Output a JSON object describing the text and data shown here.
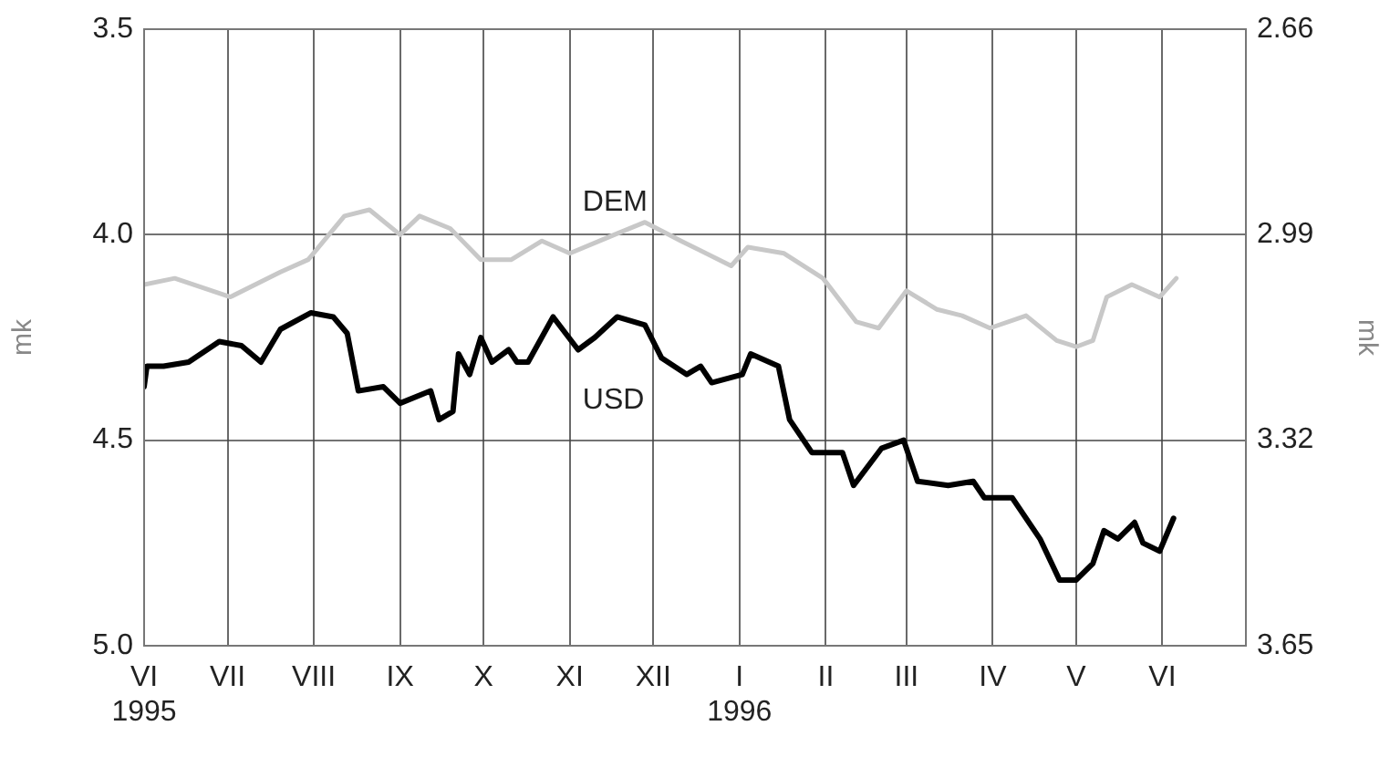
{
  "chart_data": {
    "type": "line",
    "ylabel": "mk",
    "y2label": "mk",
    "xlim": [
      "1995-06-01",
      "1996-07-01"
    ],
    "xticks": [
      {
        "value": "1995-06-01",
        "label": "VI\n1995"
      },
      {
        "value": "1995-07-01",
        "label": "VII"
      },
      {
        "value": "1995-08-01",
        "label": "VIII"
      },
      {
        "value": "1995-09-01",
        "label": "IX"
      },
      {
        "value": "1995-10-01",
        "label": "X"
      },
      {
        "value": "1995-11-01",
        "label": "XI"
      },
      {
        "value": "1995-12-01",
        "label": "XII"
      },
      {
        "value": "1996-01-01",
        "label": "I\n1996"
      },
      {
        "value": "1996-02-01",
        "label": "II"
      },
      {
        "value": "1996-03-01",
        "label": "III"
      },
      {
        "value": "1996-04-01",
        "label": "IV"
      },
      {
        "value": "1996-05-01",
        "label": "V"
      },
      {
        "value": "1996-06-01",
        "label": "VI"
      }
    ],
    "ylim": [
      5.0,
      3.5
    ],
    "yticks": [
      {
        "value": 3.5,
        "label": "3.5"
      },
      {
        "value": 4,
        "label": "4.0"
      },
      {
        "value": 4.5,
        "label": "4.5"
      },
      {
        "value": 5,
        "label": "5.0"
      }
    ],
    "y2lim": [
      3.65,
      2.66
    ],
    "y2ticks": [
      2.66,
      2.99,
      3.32,
      3.65
    ],
    "grid": true,
    "legend": false,
    "series": [
      {
        "name": "USD",
        "color": "#000000",
        "x": [
          "1995-06-01",
          "1995-06-02",
          "1995-06-08",
          "1995-06-17",
          "1995-06-28",
          "1995-07-06",
          "1995-07-13",
          "1995-07-20",
          "1995-07-31",
          "1995-08-08",
          "1995-08-13",
          "1995-08-17",
          "1995-08-26",
          "1995-09-01",
          "1995-09-12",
          "1995-09-15",
          "1995-09-20",
          "1995-09-22",
          "1995-09-26",
          "1995-09-30",
          "1995-10-04",
          "1995-10-10",
          "1995-10-13",
          "1995-10-17",
          "1995-10-26",
          "1995-11-04",
          "1995-11-10",
          "1995-11-18",
          "1995-11-28",
          "1995-12-04",
          "1995-12-13",
          "1995-12-18",
          "1995-12-22",
          "1996-01-02",
          "1996-01-05",
          "1996-01-15",
          "1996-01-19",
          "1996-01-27",
          "1996-02-07",
          "1996-02-11",
          "1996-02-21",
          "1996-02-29",
          "1996-03-05",
          "1996-03-16",
          "1996-03-25",
          "1996-03-29",
          "1996-04-08",
          "1996-04-18",
          "1996-04-25",
          "1996-05-01",
          "1996-05-07",
          "1996-05-11",
          "1996-05-16",
          "1996-05-22",
          "1996-05-25",
          "1996-05-31",
          "1996-06-05"
        ],
        "values": [
          4.37,
          4.32,
          4.32,
          4.31,
          4.26,
          4.27,
          4.31,
          4.23,
          4.19,
          4.2,
          4.24,
          4.38,
          4.37,
          4.41,
          4.38,
          4.45,
          4.43,
          4.29,
          4.34,
          4.25,
          4.31,
          4.28,
          4.31,
          4.31,
          4.2,
          4.28,
          4.25,
          4.2,
          4.22,
          4.3,
          4.34,
          4.32,
          4.36,
          4.34,
          4.29,
          4.32,
          4.45,
          4.53,
          4.53,
          4.61,
          4.52,
          4.5,
          4.6,
          4.61,
          4.6,
          4.64,
          4.64,
          4.74,
          4.84,
          4.84,
          4.8,
          4.72,
          4.74,
          4.7,
          4.75,
          4.77,
          4.69
        ]
      },
      {
        "name": "DEM",
        "color": "#c8c8c8",
        "axis": "y2",
        "x": [
          "1995-06-01",
          "1995-06-12",
          "1995-07-02",
          "1995-07-20",
          "1995-07-30",
          "1995-08-12",
          "1995-08-21",
          "1995-09-01",
          "1995-09-08",
          "1995-09-19",
          "1995-09-30",
          "1995-10-11",
          "1995-10-22",
          "1995-11-01",
          "1995-11-17",
          "1995-11-28",
          "1995-12-11",
          "1995-12-29",
          "1996-01-04",
          "1996-01-17",
          "1996-01-31",
          "1996-02-12",
          "1996-02-20",
          "1996-03-01",
          "1996-03-12",
          "1996-03-21",
          "1996-03-31",
          "1996-04-13",
          "1996-04-24",
          "1996-05-01",
          "1996-05-07",
          "1996-05-12",
          "1996-05-21",
          "1996-05-31",
          "1996-06-06"
        ],
        "values": [
          3.07,
          3.06,
          3.09,
          3.05,
          3.03,
          2.96,
          2.95,
          2.99,
          2.96,
          2.98,
          3.03,
          3.03,
          3.0,
          3.02,
          2.99,
          2.97,
          3.0,
          3.04,
          3.01,
          3.02,
          3.06,
          3.13,
          3.14,
          3.08,
          3.11,
          3.12,
          3.14,
          3.12,
          3.16,
          3.17,
          3.16,
          3.09,
          3.07,
          3.09,
          3.06
        ]
      }
    ]
  }
}
